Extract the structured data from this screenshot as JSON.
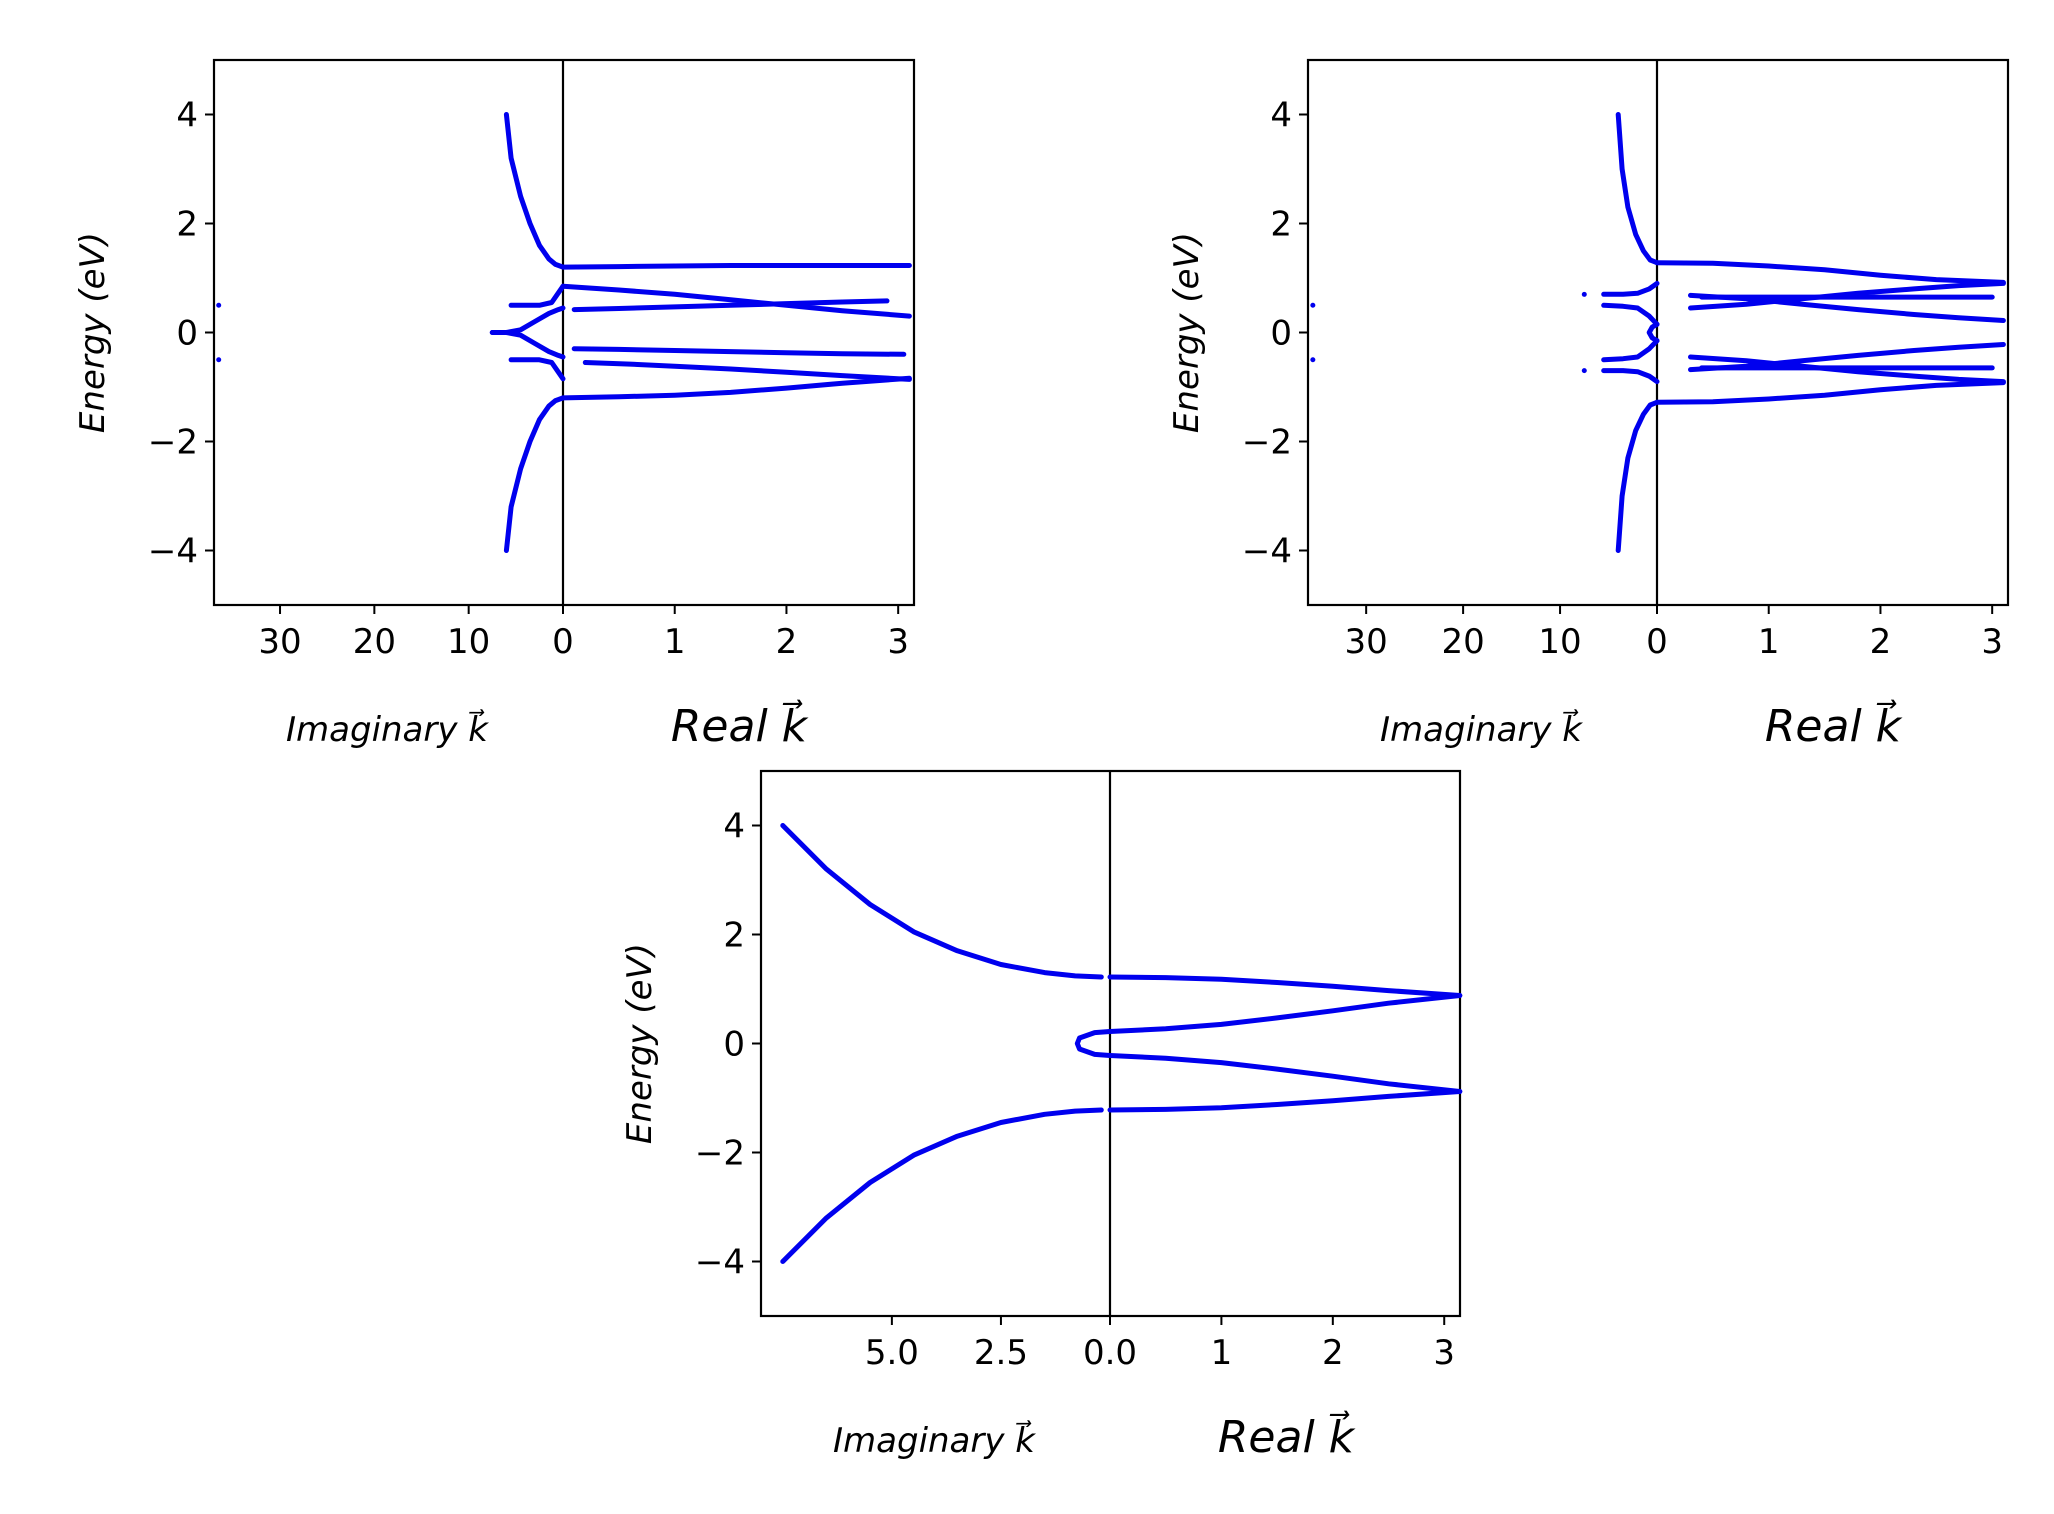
{
  "colors": {
    "series": "#0000ee",
    "axis": "#000000"
  },
  "chart_data": [
    {
      "type": "line",
      "panel": "top-left",
      "ylabel": "Energy  (eV)",
      "xlabel_imag": "Imaginary k⃗",
      "xlabel_real": "Real k⃗",
      "ylim": [
        -5,
        5
      ],
      "imag_xlim": [
        0,
        37
      ],
      "real_xlim": [
        0,
        3.1416
      ],
      "y_ticks": [
        "−4",
        "−2",
        "0",
        "2",
        "4"
      ],
      "y_tick_values": [
        -4,
        -2,
        0,
        2,
        4
      ],
      "imag_ticks": [
        "30",
        "20",
        "10",
        "0"
      ],
      "imag_tick_values": [
        30,
        20,
        10,
        0
      ],
      "real_ticks": [
        "1",
        "2",
        "3"
      ],
      "real_tick_values": [
        1,
        2,
        3
      ],
      "imag_series": [
        {
          "x": [
            6,
            5.5,
            4.5,
            3.5,
            2.5,
            1.5,
            0.8,
            0
          ],
          "y": [
            4.0,
            3.2,
            2.5,
            2.0,
            1.6,
            1.35,
            1.25,
            1.2
          ]
        },
        {
          "x": [
            6,
            5.5,
            4.5,
            3.5,
            2.5,
            1.5,
            0.8,
            0
          ],
          "y": [
            -4.0,
            -3.2,
            -2.5,
            -2.0,
            -1.6,
            -1.35,
            -1.25,
            -1.2
          ]
        },
        {
          "x": [
            5.5,
            4,
            2.5,
            1.2,
            0
          ],
          "y": [
            0.5,
            0.5,
            0.5,
            0.55,
            0.85
          ]
        },
        {
          "x": [
            5.5,
            4,
            2.5,
            1.2,
            0
          ],
          "y": [
            -0.5,
            -0.5,
            -0.5,
            -0.55,
            -0.85
          ]
        },
        {
          "x": [
            7.5,
            6,
            4.5,
            3,
            1.5,
            0.5,
            0
          ],
          "y": [
            0,
            0,
            0.05,
            0.2,
            0.35,
            0.42,
            0.45
          ]
        },
        {
          "x": [
            7.5,
            6,
            4.5,
            3,
            1.5,
            0.5,
            0
          ],
          "y": [
            0,
            0,
            -0.05,
            -0.2,
            -0.35,
            -0.42,
            -0.45
          ]
        }
      ],
      "imag_points": [
        {
          "x": 36.5,
          "y": 0.5
        },
        {
          "x": 36.5,
          "y": -0.5
        }
      ],
      "real_series": [
        {
          "x": [
            0,
            0.5,
            1,
            1.5,
            2,
            2.5,
            3.1
          ],
          "y": [
            -1.2,
            -1.18,
            -1.15,
            -1.1,
            -1.02,
            -0.93,
            -0.84
          ]
        },
        {
          "x": [
            0,
            0.5,
            1,
            1.5,
            2,
            2.5,
            3.1
          ],
          "y": [
            1.2,
            1.21,
            1.22,
            1.23,
            1.23,
            1.23,
            1.23
          ]
        },
        {
          "x": [
            0,
            0.5,
            1,
            1.5,
            2,
            2.5,
            3.1
          ],
          "y": [
            0.85,
            0.78,
            0.7,
            0.6,
            0.5,
            0.4,
            0.3
          ]
        },
        {
          "x": [
            0.1,
            0.5,
            1,
            1.5,
            2,
            2.5,
            2.9
          ],
          "y": [
            0.42,
            0.44,
            0.47,
            0.5,
            0.53,
            0.56,
            0.58
          ]
        },
        {
          "x": [
            0.1,
            0.5,
            1,
            1.5,
            2,
            2.5,
            3.05
          ],
          "y": [
            -0.3,
            -0.31,
            -0.33,
            -0.35,
            -0.37,
            -0.39,
            -0.4
          ]
        },
        {
          "x": [
            0.2,
            0.6,
            1,
            1.5,
            2,
            2.5,
            3.1
          ],
          "y": [
            -0.55,
            -0.58,
            -0.62,
            -0.67,
            -0.73,
            -0.79,
            -0.86
          ]
        }
      ]
    },
    {
      "type": "line",
      "panel": "top-right",
      "ylabel": "Energy  (eV)",
      "xlabel_imag": "Imaginary k⃗",
      "xlabel_real": "Real k⃗",
      "ylim": [
        -5,
        5
      ],
      "imag_xlim": [
        0,
        36
      ],
      "real_xlim": [
        0,
        3.1416
      ],
      "y_ticks": [
        "−4",
        "−2",
        "0",
        "2",
        "4"
      ],
      "y_tick_values": [
        -4,
        -2,
        0,
        2,
        4
      ],
      "imag_ticks": [
        "30",
        "20",
        "10",
        "0"
      ],
      "imag_tick_values": [
        30,
        20,
        10,
        0
      ],
      "real_ticks": [
        "1",
        "2",
        "3"
      ],
      "real_tick_values": [
        1,
        2,
        3
      ],
      "imag_series": [
        {
          "x": [
            4,
            3.6,
            3,
            2.2,
            1.4,
            0.7,
            0
          ],
          "y": [
            4.0,
            3.0,
            2.3,
            1.8,
            1.5,
            1.33,
            1.28
          ]
        },
        {
          "x": [
            4,
            3.6,
            3,
            2.2,
            1.4,
            0.7,
            0
          ],
          "y": [
            -4.0,
            -3.0,
            -2.3,
            -1.8,
            -1.5,
            -1.33,
            -1.28
          ]
        },
        {
          "x": [
            5.5,
            3.5,
            2,
            0.8,
            0
          ],
          "y": [
            0.7,
            0.7,
            0.72,
            0.8,
            0.9
          ]
        },
        {
          "x": [
            5.5,
            3.5,
            2,
            0.8,
            0
          ],
          "y": [
            0.5,
            0.48,
            0.45,
            0.3,
            0.15
          ]
        },
        {
          "x": [
            5.5,
            3.5,
            2,
            0.8,
            0
          ],
          "y": [
            -0.7,
            -0.7,
            -0.72,
            -0.8,
            -0.9
          ]
        },
        {
          "x": [
            5.5,
            3.5,
            2,
            0.8,
            0
          ],
          "y": [
            -0.5,
            -0.48,
            -0.45,
            -0.3,
            -0.15
          ]
        },
        {
          "x": [
            0,
            0.5,
            0.8,
            0.5,
            0
          ],
          "y": [
            0.15,
            0.1,
            0,
            -0.1,
            -0.15
          ]
        }
      ],
      "imag_points": [
        {
          "x": 35.5,
          "y": 0.5
        },
        {
          "x": 35.5,
          "y": -0.5
        },
        {
          "x": 7.5,
          "y": 0.7
        },
        {
          "x": 7.5,
          "y": -0.7
        }
      ],
      "real_series": [
        {
          "x": [
            0,
            0.5,
            1,
            1.5,
            2,
            2.5,
            3.1
          ],
          "y": [
            1.28,
            1.27,
            1.22,
            1.15,
            1.05,
            0.97,
            0.92
          ]
        },
        {
          "x": [
            0,
            0.5,
            1,
            1.5,
            2,
            2.5,
            3.1
          ],
          "y": [
            -1.28,
            -1.27,
            -1.22,
            -1.15,
            -1.05,
            -0.97,
            -0.92
          ]
        },
        {
          "x": [
            0.3,
            0.8,
            1.3,
            1.8,
            2.3,
            2.7,
            3.1
          ],
          "y": [
            0.45,
            0.52,
            0.62,
            0.72,
            0.8,
            0.86,
            0.9
          ]
        },
        {
          "x": [
            0.3,
            0.8,
            1.3,
            1.8,
            2.3,
            2.7,
            3.1
          ],
          "y": [
            0.68,
            0.62,
            0.52,
            0.42,
            0.33,
            0.27,
            0.22
          ]
        },
        {
          "x": [
            0.4,
            1,
            1.5,
            2,
            2.5,
            3.0
          ],
          "y": [
            0.65,
            0.65,
            0.65,
            0.65,
            0.65,
            0.65
          ]
        },
        {
          "x": [
            0.3,
            0.8,
            1.3,
            1.8,
            2.3,
            2.7,
            3.1
          ],
          "y": [
            -0.45,
            -0.52,
            -0.62,
            -0.72,
            -0.8,
            -0.86,
            -0.9
          ]
        },
        {
          "x": [
            0.3,
            0.8,
            1.3,
            1.8,
            2.3,
            2.7,
            3.1
          ],
          "y": [
            -0.68,
            -0.62,
            -0.52,
            -0.42,
            -0.33,
            -0.27,
            -0.22
          ]
        },
        {
          "x": [
            0.4,
            1,
            1.5,
            2,
            2.5,
            3.0
          ],
          "y": [
            -0.65,
            -0.65,
            -0.65,
            -0.65,
            -0.65,
            -0.65
          ]
        }
      ]
    },
    {
      "type": "line",
      "panel": "bottom",
      "ylabel": "Energy  (eV)",
      "xlabel_imag": "Imaginary k⃗",
      "xlabel_real": "Real k⃗",
      "ylim": [
        -5,
        5
      ],
      "imag_xlim": [
        0,
        8
      ],
      "real_xlim": [
        0,
        3.1416
      ],
      "y_ticks": [
        "−4",
        "−2",
        "0",
        "2",
        "4"
      ],
      "y_tick_values": [
        -4,
        -2,
        0,
        2,
        4
      ],
      "imag_ticks": [
        "5.0",
        "2.5",
        "0.0"
      ],
      "imag_tick_values": [
        5.0,
        2.5,
        0.0
      ],
      "real_ticks": [
        "1",
        "2",
        "3"
      ],
      "real_tick_values": [
        1,
        2,
        3
      ],
      "imag_series": [
        {
          "x": [
            7.5,
            6.5,
            5.5,
            4.5,
            3.5,
            2.5,
            1.5,
            0.8,
            0.2
          ],
          "y": [
            4.0,
            3.2,
            2.55,
            2.05,
            1.7,
            1.45,
            1.3,
            1.24,
            1.22
          ]
        },
        {
          "x": [
            7.5,
            6.5,
            5.5,
            4.5,
            3.5,
            2.5,
            1.5,
            0.8,
            0.2
          ],
          "y": [
            -4.0,
            -3.2,
            -2.55,
            -2.05,
            -1.7,
            -1.45,
            -1.3,
            -1.24,
            -1.22
          ]
        },
        {
          "x": [
            0,
            0.35,
            0.7,
            0.75,
            0.7,
            0.35,
            0
          ],
          "y": [
            0.22,
            0.2,
            0.1,
            0,
            -0.1,
            -0.2,
            -0.22
          ]
        }
      ],
      "imag_points": [],
      "real_series": [
        {
          "x": [
            0,
            0.5,
            1,
            1.5,
            2,
            2.5,
            3.14
          ],
          "y": [
            1.22,
            1.21,
            1.18,
            1.12,
            1.05,
            0.97,
            0.88
          ]
        },
        {
          "x": [
            0,
            0.5,
            1,
            1.5,
            2,
            2.5,
            3.14
          ],
          "y": [
            -1.22,
            -1.21,
            -1.18,
            -1.12,
            -1.05,
            -0.97,
            -0.88
          ]
        },
        {
          "x": [
            0,
            0.5,
            1,
            1.5,
            2,
            2.5,
            3.14
          ],
          "y": [
            0.22,
            0.27,
            0.35,
            0.47,
            0.6,
            0.74,
            0.88
          ]
        },
        {
          "x": [
            0,
            0.5,
            1,
            1.5,
            2,
            2.5,
            3.14
          ],
          "y": [
            -0.22,
            -0.27,
            -0.35,
            -0.47,
            -0.6,
            -0.74,
            -0.88
          ]
        }
      ]
    }
  ]
}
